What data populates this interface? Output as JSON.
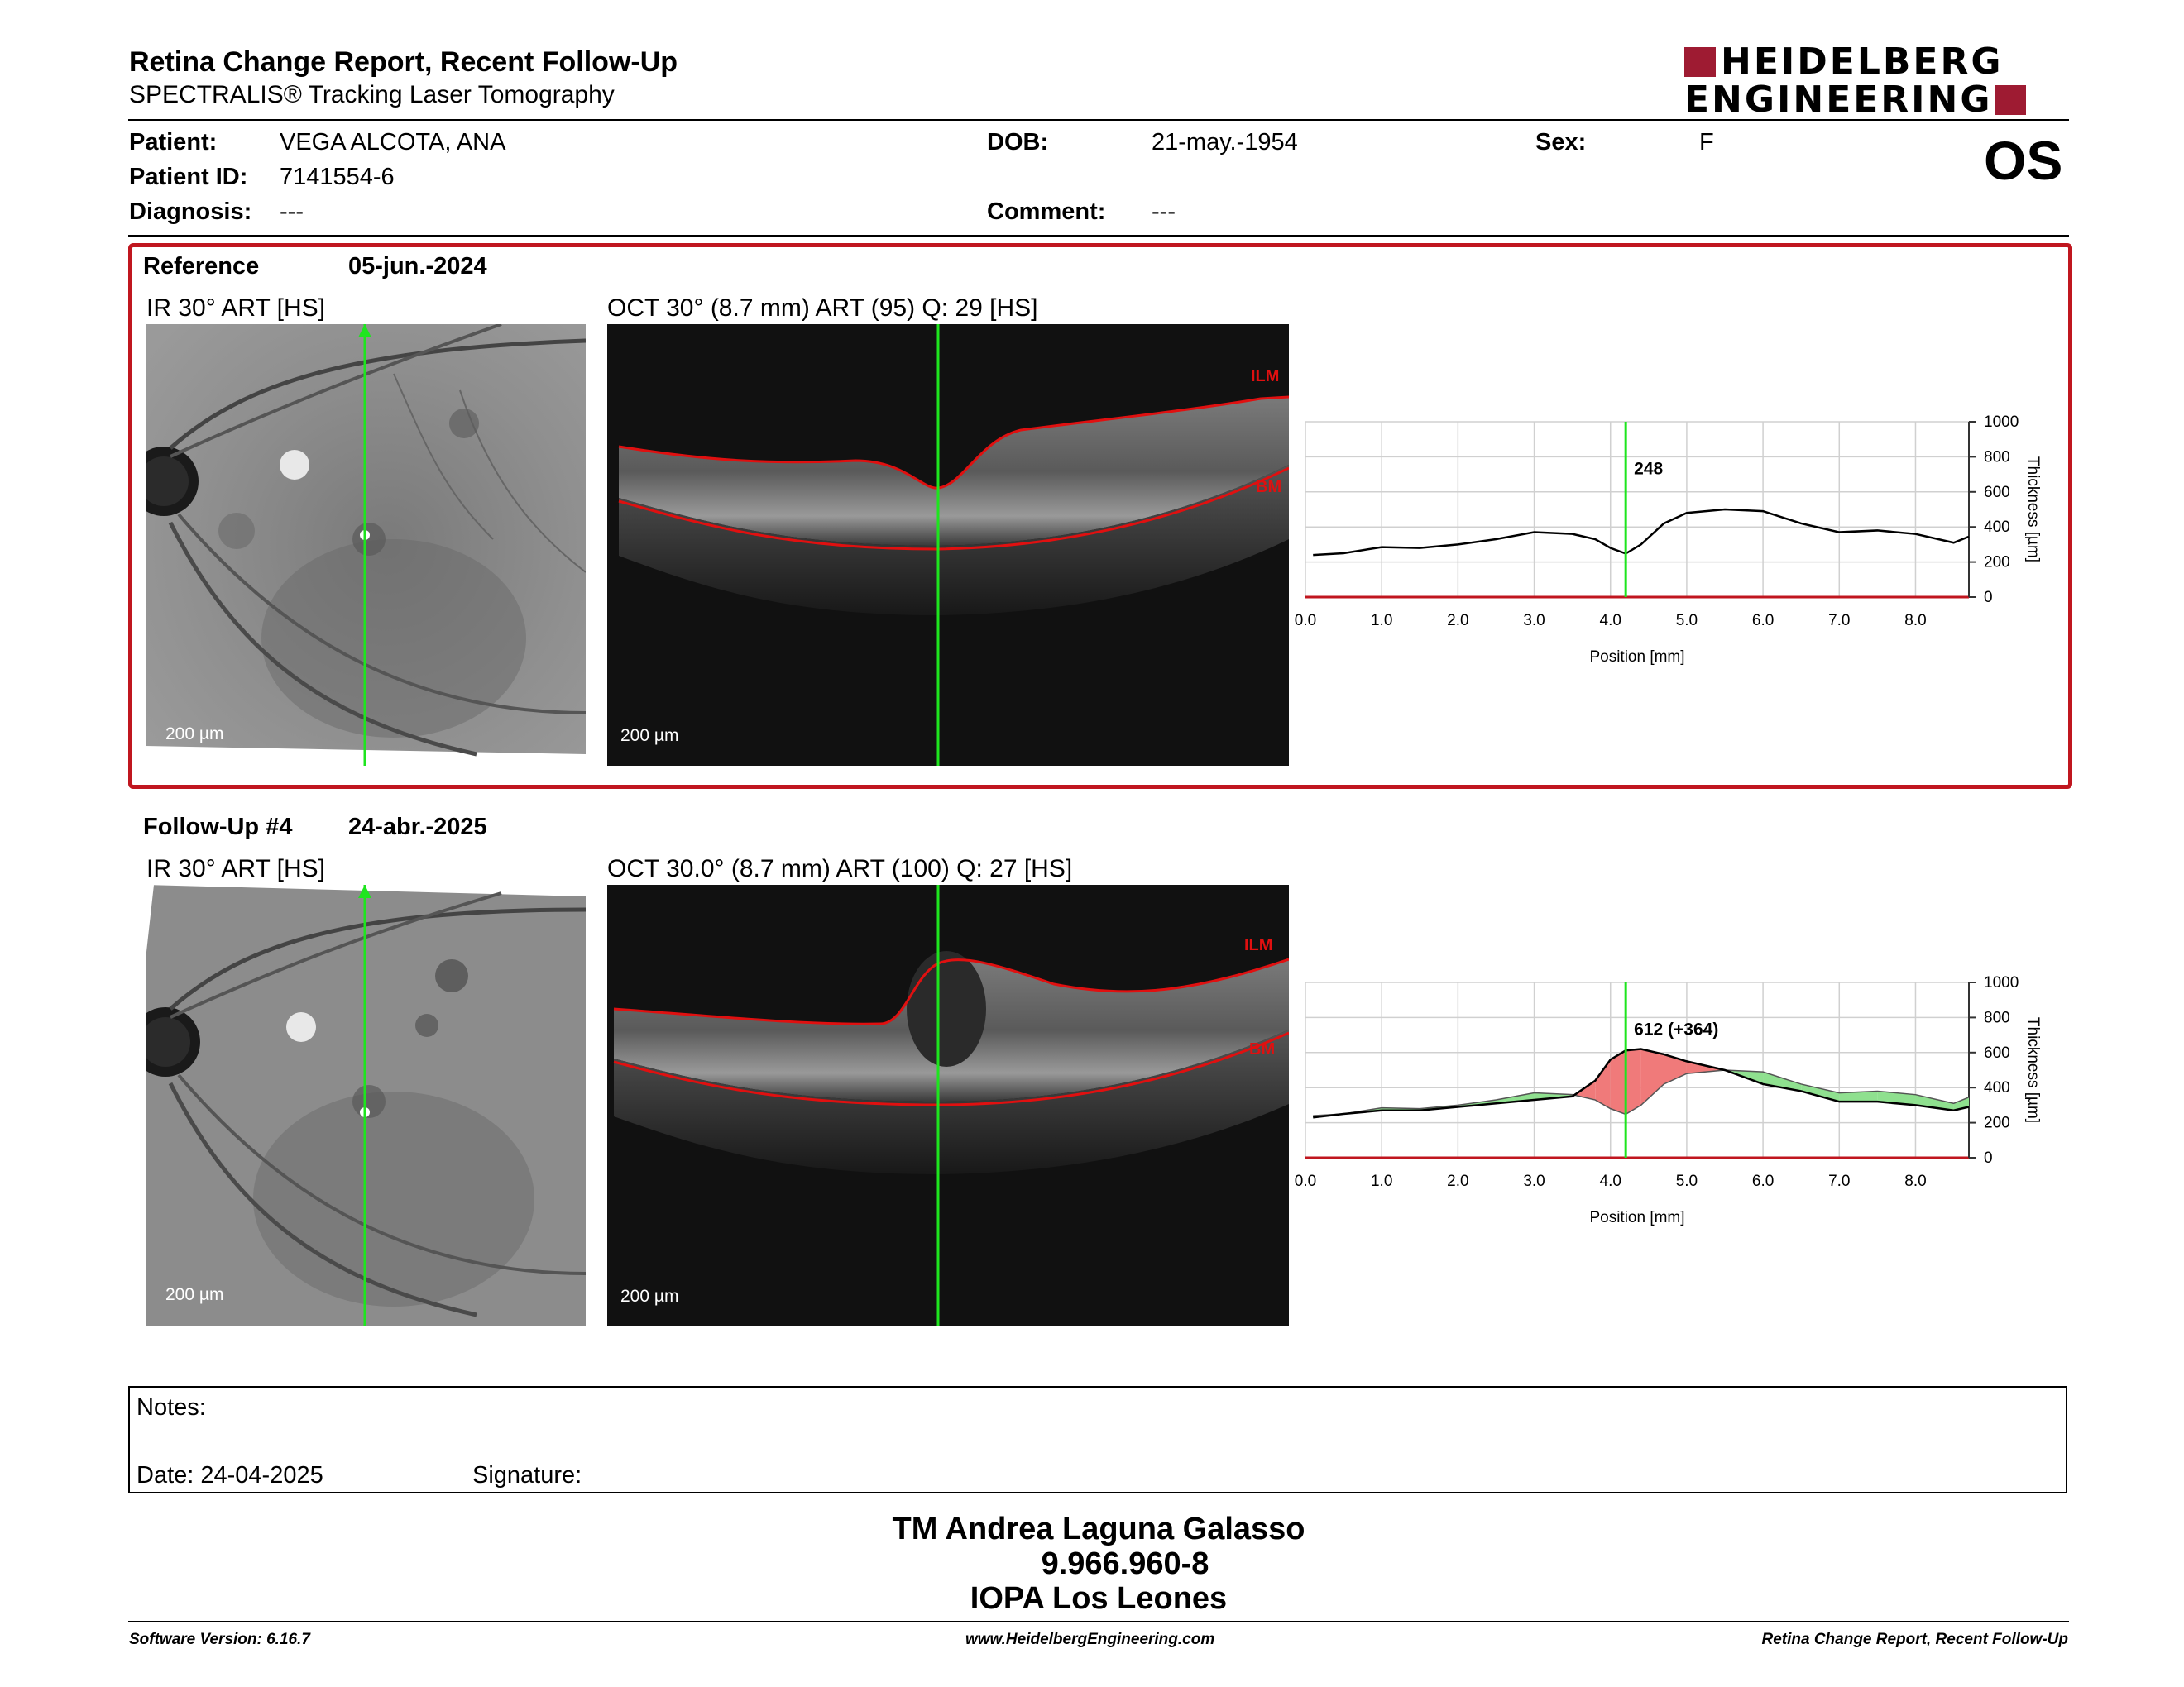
{
  "header": {
    "title": "Retina Change Report, Recent Follow-Up",
    "subtitle": "SPECTRALIS® Tracking Laser Tomography",
    "logo_line1": "HEIDELBERG",
    "logo_line2": "ENGINEERING",
    "brand_color": "#9e1b32"
  },
  "patient": {
    "patient_label": "Patient:",
    "patient_value": "VEGA ALCOTA, ANA",
    "id_label": "Patient ID:",
    "id_value": "7141554-6",
    "diagnosis_label": "Diagnosis:",
    "diagnosis_value": "---",
    "dob_label": "DOB:",
    "dob_value": "21-may.-1954",
    "comment_label": "Comment:",
    "comment_value": "---",
    "sex_label": "Sex:",
    "sex_value": "F",
    "eye": "OS"
  },
  "reference": {
    "label": "Reference",
    "date": "05-jun.-2024",
    "ir_title": "IR 30° ART [HS]",
    "oct_title": "OCT 30° (8.7 mm) ART (95) Q: 29 [HS]",
    "scale": "200 µm",
    "ilm": "ILM",
    "bm": "BM"
  },
  "followup": {
    "label": "Follow-Up #4",
    "date": "24-abr.-2025",
    "ir_title": "IR 30° ART [HS]",
    "oct_title": "OCT 30.0° (8.7 mm) ART (100) Q: 27 [HS]",
    "scale": "200 µm",
    "ilm": "ILM",
    "bm": "BM"
  },
  "chart_data": [
    {
      "type": "line",
      "xlabel": "Position [mm]",
      "ylabel": "Thickness [µm]",
      "xlim": [
        0,
        8.7
      ],
      "ylim": [
        0,
        1000
      ],
      "x_ticks": [
        "0.0",
        "1.0",
        "2.0",
        "3.0",
        "4.0",
        "5.0",
        "6.0",
        "7.0",
        "8.0"
      ],
      "y_ticks": [
        "0",
        "200",
        "400",
        "600",
        "800",
        "1000"
      ],
      "cursor_x": 4.2,
      "cursor_label": "248",
      "grid": true,
      "series": [
        {
          "x": [
            0.1,
            0.5,
            1.0,
            1.5,
            2.0,
            2.5,
            3.0,
            3.5,
            3.8,
            4.0,
            4.2,
            4.4,
            4.7,
            5.0,
            5.5,
            6.0,
            6.5,
            7.0,
            7.5,
            8.0,
            8.5,
            8.7
          ],
          "values": [
            240,
            250,
            285,
            280,
            300,
            330,
            370,
            360,
            330,
            280,
            248,
            300,
            420,
            480,
            500,
            490,
            420,
            370,
            380,
            360,
            310,
            345
          ]
        }
      ]
    },
    {
      "type": "area",
      "xlabel": "Position [mm]",
      "ylabel": "Thickness [µm]",
      "xlim": [
        0,
        8.7
      ],
      "ylim": [
        0,
        1000
      ],
      "x_ticks": [
        "0.0",
        "1.0",
        "2.0",
        "3.0",
        "4.0",
        "5.0",
        "6.0",
        "7.0",
        "8.0"
      ],
      "y_ticks": [
        "0",
        "200",
        "400",
        "600",
        "800",
        "1000"
      ],
      "cursor_x": 4.2,
      "cursor_label": "612 (+364)",
      "grid": true,
      "series": [
        {
          "x": [
            0.1,
            0.5,
            1.0,
            1.5,
            2.0,
            2.5,
            3.0,
            3.5,
            3.8,
            4.0,
            4.2,
            4.4,
            4.7,
            5.0,
            5.5,
            6.0,
            6.5,
            7.0,
            7.5,
            8.0,
            8.5,
            8.7
          ],
          "values": [
            230,
            250,
            270,
            270,
            290,
            310,
            330,
            350,
            440,
            560,
            612,
            620,
            590,
            550,
            500,
            420,
            380,
            320,
            320,
            300,
            270,
            290
          ]
        },
        {
          "x": [
            0.1,
            0.5,
            1.0,
            1.5,
            2.0,
            2.5,
            3.0,
            3.5,
            3.8,
            4.0,
            4.2,
            4.4,
            4.7,
            5.0,
            5.5,
            6.0,
            6.5,
            7.0,
            7.5,
            8.0,
            8.5,
            8.7
          ],
          "values": [
            240,
            250,
            285,
            280,
            300,
            330,
            370,
            360,
            330,
            280,
            248,
            300,
            420,
            480,
            500,
            490,
            420,
            370,
            380,
            360,
            310,
            345
          ]
        }
      ]
    }
  ],
  "notes": {
    "label": "Notes:",
    "date": "Date: 24-04-2025",
    "signature": "Signature:"
  },
  "signer": {
    "name": "TM Andrea Laguna Galasso",
    "id": "9.966.960-8",
    "org": "IOPA Los Leones"
  },
  "footer": {
    "version": "Software Version: 6.16.7",
    "url": "www.HeidelbergEngineering.com",
    "report": "Retina Change Report, Recent Follow-Up"
  }
}
